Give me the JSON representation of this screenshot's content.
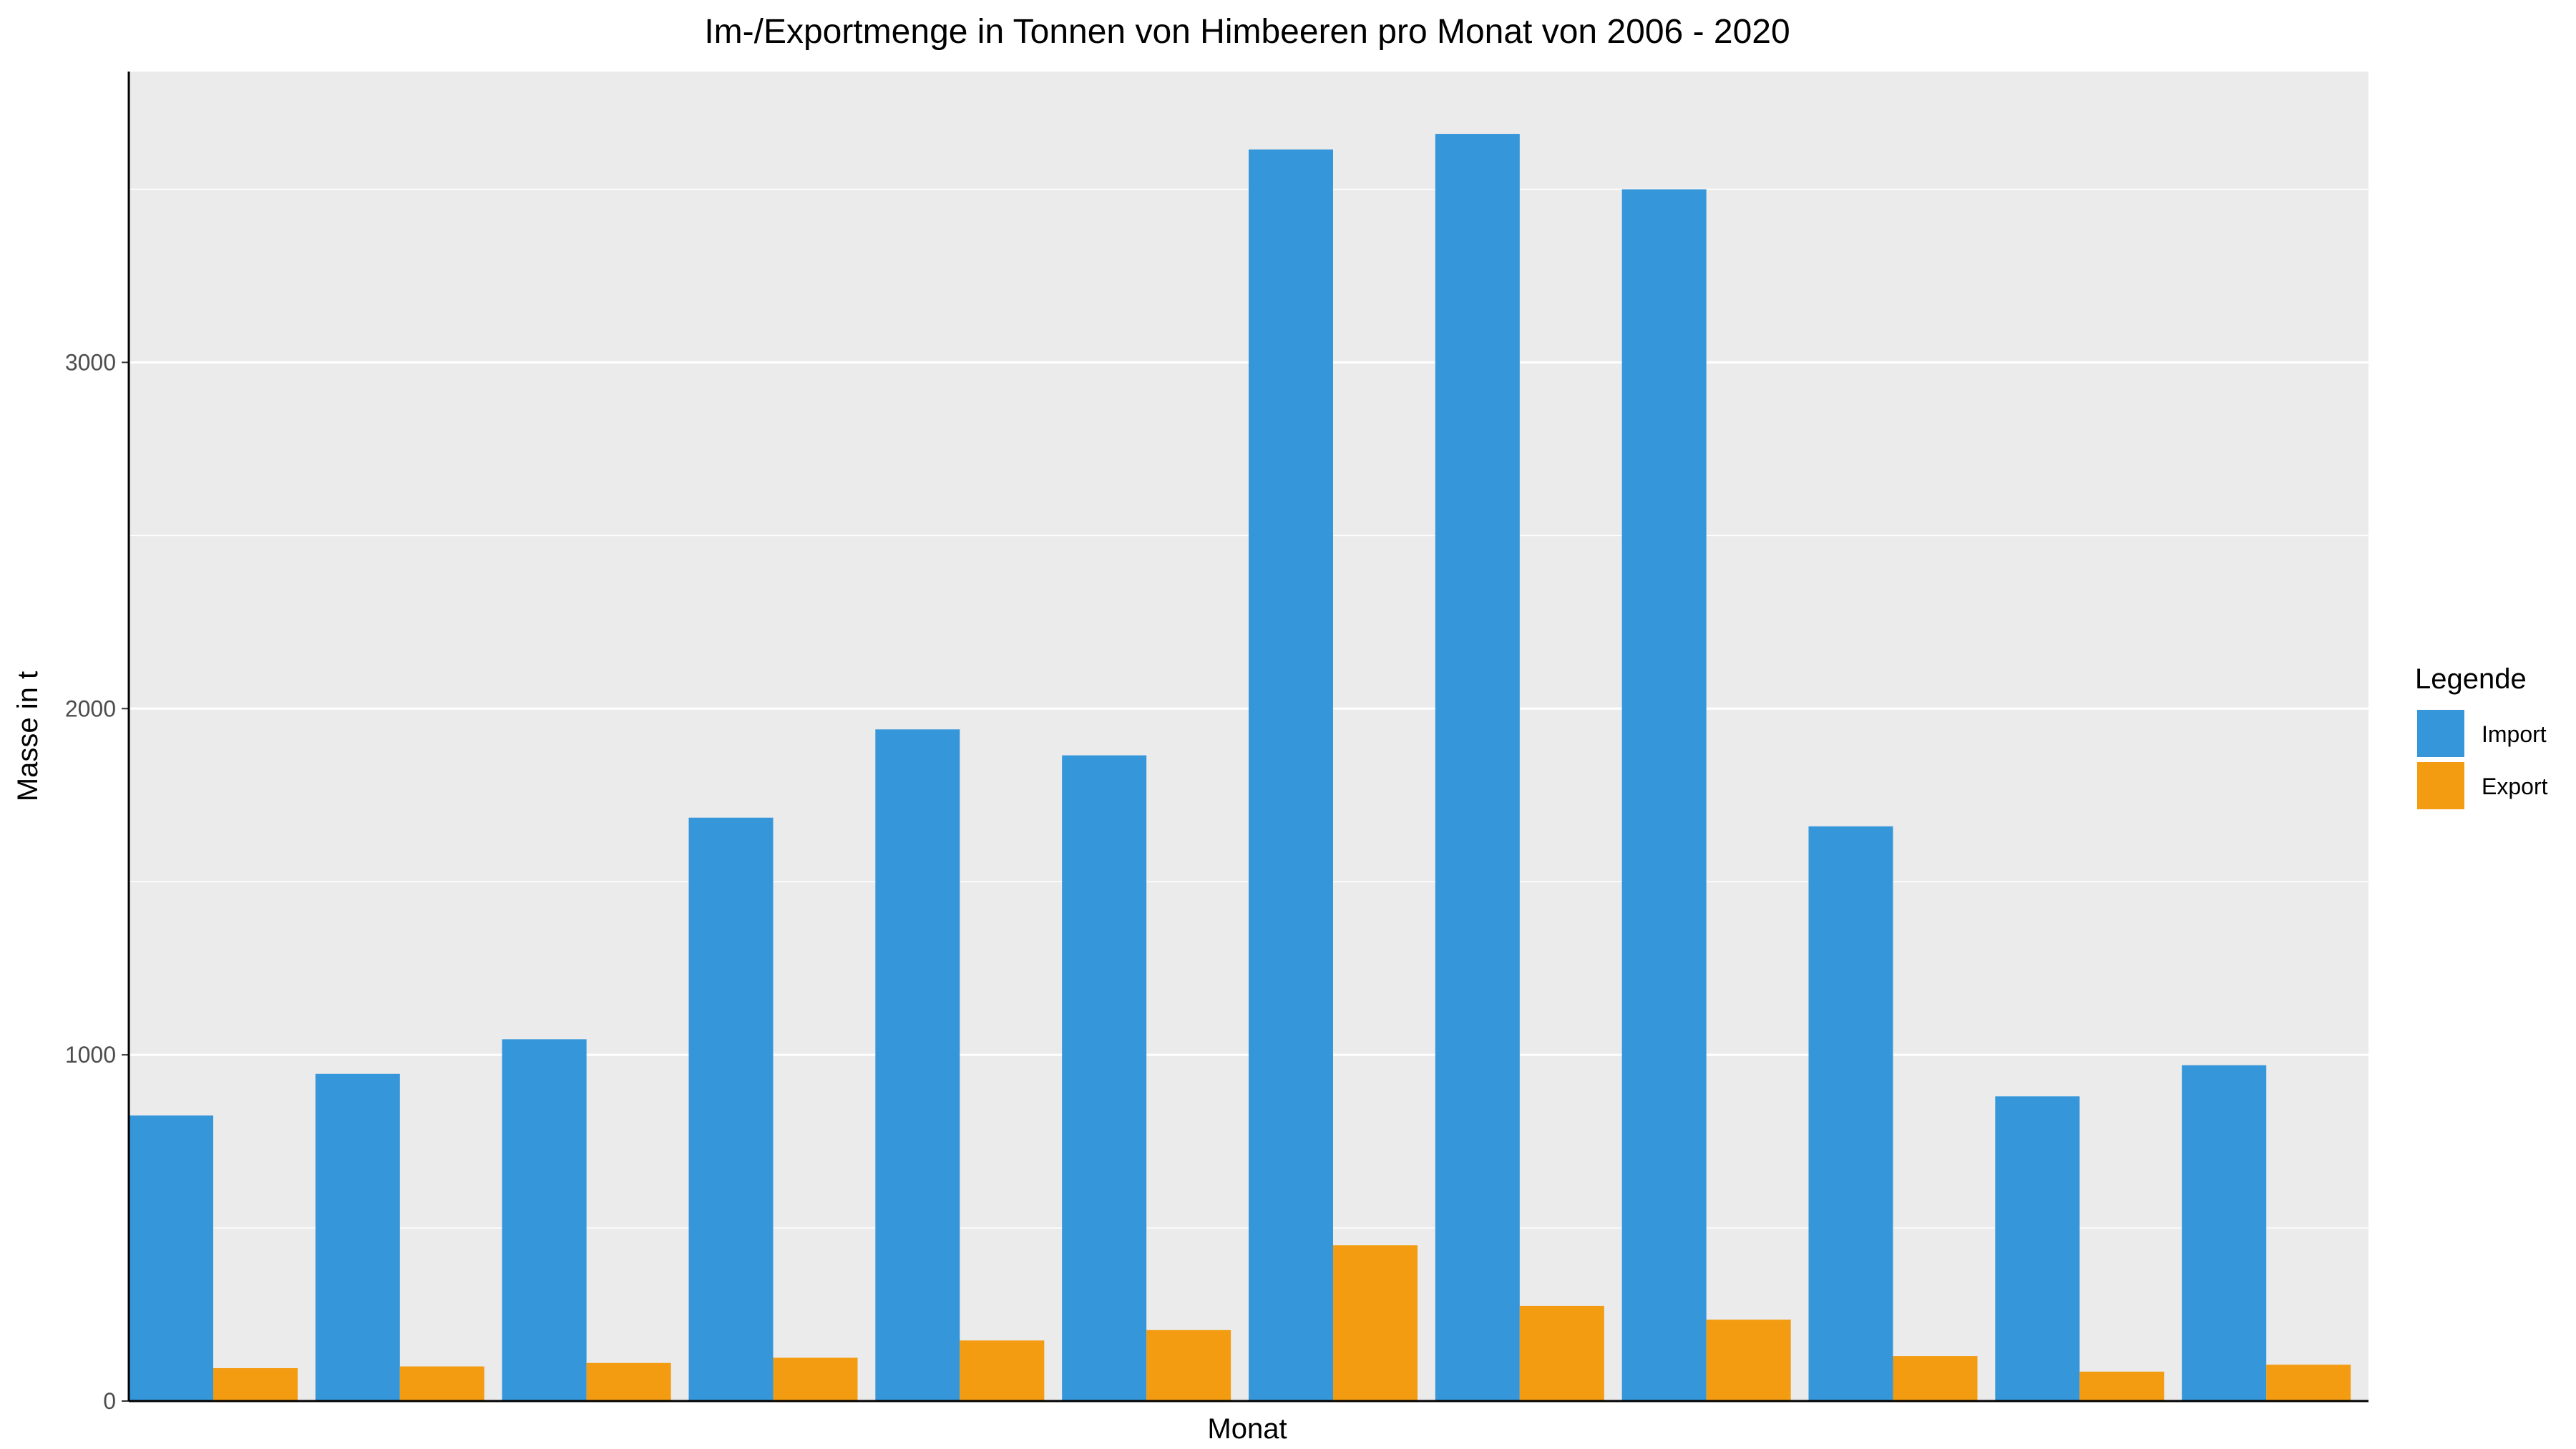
{
  "chart_data": {
    "type": "bar",
    "title": "Im-/Exportmenge in Tonnen von Himbeeren pro Monat von 2006 - 2020",
    "xlabel": "Monat",
    "ylabel": "Masse in t",
    "categories": [
      "",
      "",
      "",
      "",
      "",
      "",
      "",
      "",
      "",
      "",
      "",
      ""
    ],
    "series": [
      {
        "name": "Import",
        "color": "#3696DA",
        "values": [
          825,
          945,
          1045,
          1685,
          1940,
          1865,
          3615,
          3660,
          3500,
          1660,
          880,
          970
        ]
      },
      {
        "name": "Export",
        "color": "#F39C12",
        "values": [
          95,
          100,
          110,
          125,
          175,
          205,
          450,
          275,
          235,
          130,
          85,
          105
        ]
      }
    ],
    "yticks": [
      0,
      1000,
      2000,
      3000
    ],
    "ylim": [
      0,
      3840
    ],
    "grid": true,
    "panel_background": "#EBEBEB",
    "legend": {
      "title": "Legende",
      "position": "right"
    }
  }
}
